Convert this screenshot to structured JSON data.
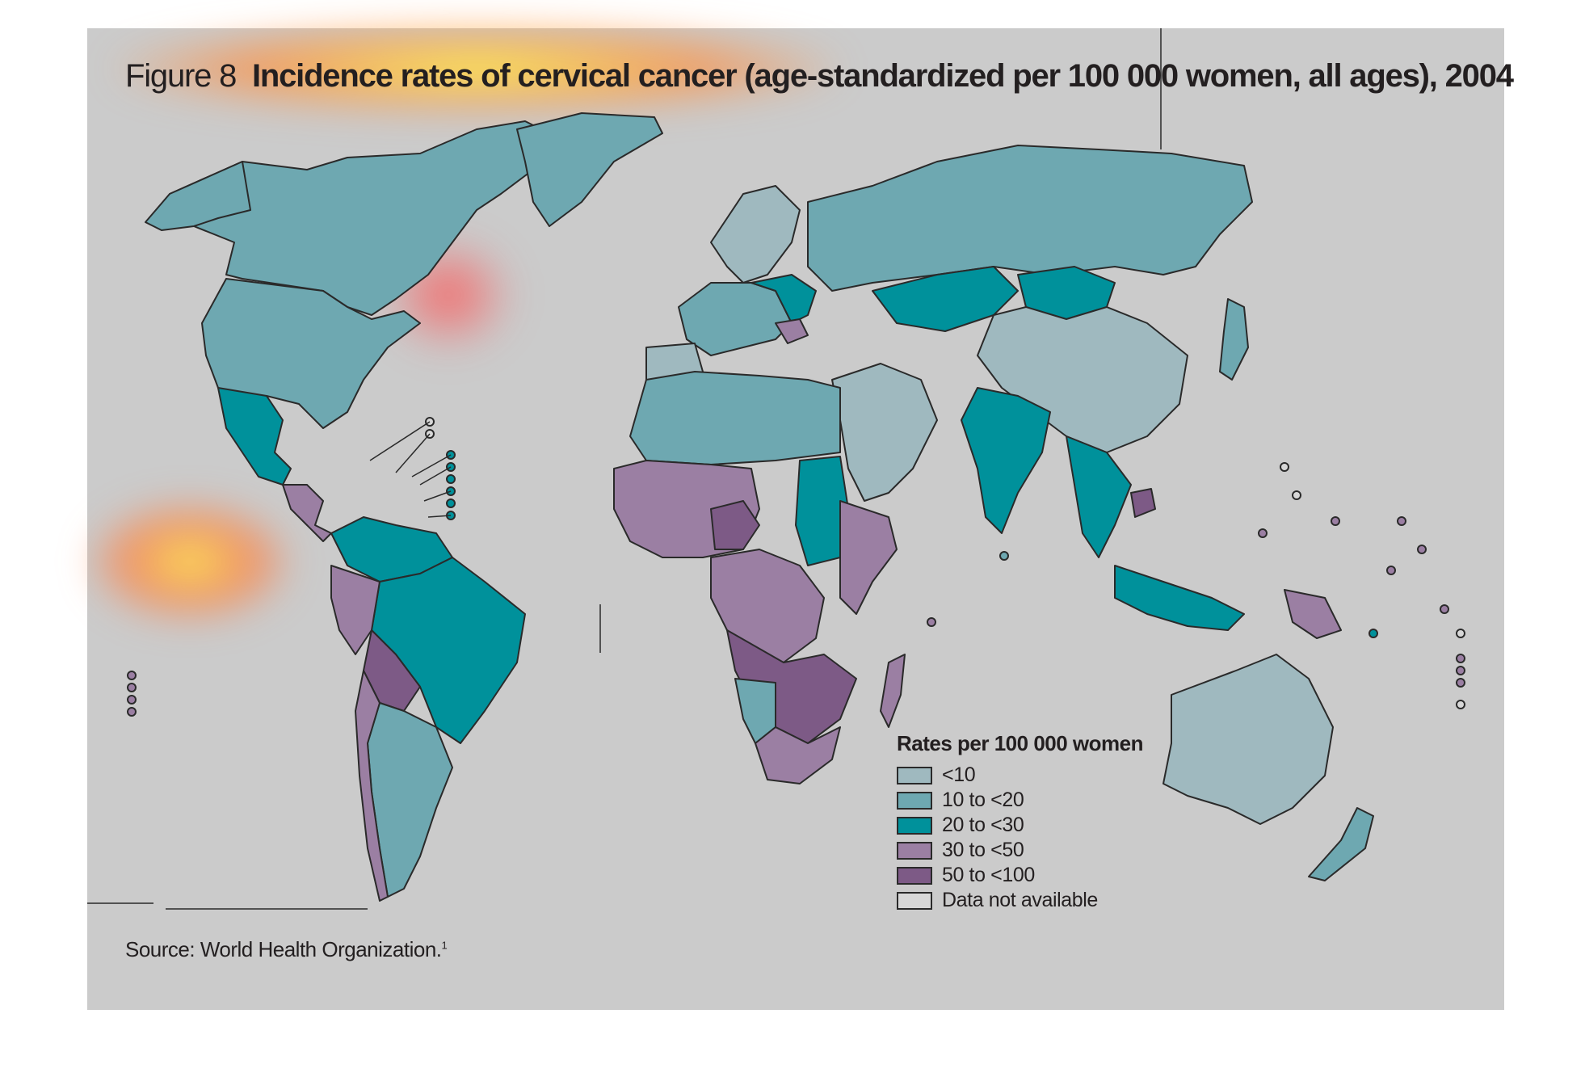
{
  "title": {
    "figure_label": "Figure 8",
    "text": "Incidence rates of cervical cancer (age-standardized per 100 000 women, all ages), 2004"
  },
  "source": {
    "text": "Source: World Health Organization.",
    "footnote": "1"
  },
  "legend": {
    "title": "Rates per 100 000 women",
    "items": [
      {
        "label": "<10",
        "color": "#9fb9bf"
      },
      {
        "label": "10 to <20",
        "color": "#6ea8b1"
      },
      {
        "label": "20 to <30",
        "color": "#00919b"
      },
      {
        "label": "30 to <50",
        "color": "#9b7fa3"
      },
      {
        "label": "50 to <100",
        "color": "#7d5a86"
      },
      {
        "label": "Data not available",
        "color": "#d8d8d8"
      }
    ]
  },
  "colors": {
    "background_panel": "#cbcbcb",
    "border": "#2a2a2a",
    "heatmap_overlay": [
      "#ffff66",
      "#ff9933",
      "#ff3333"
    ]
  }
}
